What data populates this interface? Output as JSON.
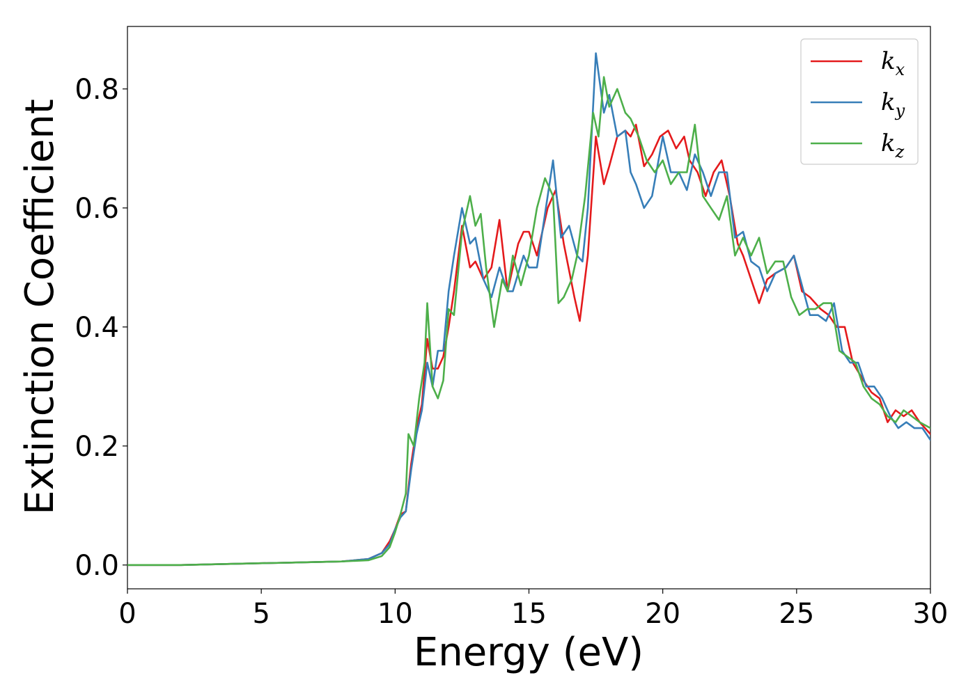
{
  "chart_data": {
    "type": "line",
    "xlabel": "Energy (eV)",
    "ylabel": "Extinction Coefficient",
    "xlim": [
      0,
      30
    ],
    "ylim": [
      -0.04,
      0.905
    ],
    "xticks": [
      0,
      5,
      10,
      15,
      20,
      25,
      30
    ],
    "xtick_labels": [
      "0",
      "5",
      "10",
      "15",
      "20",
      "25",
      "30"
    ],
    "yticks": [
      0.0,
      0.2,
      0.4,
      0.6,
      0.8
    ],
    "ytick_labels": [
      "0.0",
      "0.2",
      "0.4",
      "0.6",
      "0.8"
    ],
    "grid": false,
    "legend": {
      "position": "top-right"
    },
    "series": [
      {
        "name": "kx",
        "legend_base": "k",
        "legend_sub": "x",
        "color": "#e41a1c",
        "x": [
          0,
          2,
          4,
          6,
          8,
          9,
          9.5,
          9.8,
          10,
          10.2,
          10.4,
          10.6,
          10.8,
          11,
          11.2,
          11.4,
          11.6,
          11.8,
          12,
          12.2,
          12.5,
          12.8,
          13,
          13.3,
          13.6,
          13.9,
          14.2,
          14.4,
          14.6,
          14.8,
          15,
          15.3,
          15.7,
          16,
          16.3,
          16.7,
          16.9,
          17.2,
          17.5,
          17.8,
          18,
          18.3,
          18.6,
          18.8,
          19,
          19.3,
          19.6,
          19.9,
          20.2,
          20.5,
          20.8,
          21,
          21.3,
          21.6,
          21.9,
          22.2,
          22.5,
          22.8,
          23,
          23.3,
          23.6,
          23.9,
          24.2,
          24.6,
          24.9,
          25.2,
          25.5,
          25.9,
          26.2,
          26.5,
          26.8,
          27.1,
          27.5,
          27.8,
          28.1,
          28.4,
          28.7,
          29,
          29.3,
          29.6,
          30
        ],
        "y": [
          0.0,
          0.0,
          0.002,
          0.004,
          0.006,
          0.01,
          0.02,
          0.04,
          0.06,
          0.085,
          0.09,
          0.17,
          0.23,
          0.27,
          0.38,
          0.33,
          0.33,
          0.35,
          0.4,
          0.46,
          0.57,
          0.5,
          0.51,
          0.48,
          0.5,
          0.58,
          0.46,
          0.5,
          0.54,
          0.56,
          0.56,
          0.52,
          0.6,
          0.63,
          0.54,
          0.45,
          0.41,
          0.52,
          0.72,
          0.64,
          0.67,
          0.72,
          0.73,
          0.72,
          0.74,
          0.67,
          0.69,
          0.72,
          0.73,
          0.7,
          0.72,
          0.68,
          0.66,
          0.62,
          0.66,
          0.68,
          0.62,
          0.54,
          0.52,
          0.48,
          0.44,
          0.48,
          0.49,
          0.5,
          0.52,
          0.46,
          0.45,
          0.43,
          0.42,
          0.4,
          0.4,
          0.34,
          0.31,
          0.29,
          0.28,
          0.24,
          0.26,
          0.25,
          0.26,
          0.24,
          0.22
        ]
      },
      {
        "name": "ky",
        "legend_base": "k",
        "legend_sub": "y",
        "color": "#377eb8",
        "x": [
          0,
          2,
          4,
          6,
          8,
          9,
          9.5,
          9.8,
          10,
          10.2,
          10.4,
          10.6,
          10.8,
          11,
          11.2,
          11.4,
          11.6,
          11.8,
          12,
          12.2,
          12.5,
          12.8,
          13,
          13.3,
          13.6,
          13.9,
          14.2,
          14.4,
          14.6,
          14.8,
          15,
          15.3,
          15.7,
          15.9,
          16.2,
          16.5,
          16.8,
          17,
          17.2,
          17.5,
          17.8,
          18,
          18.3,
          18.6,
          18.8,
          19,
          19.3,
          19.6,
          20,
          20.3,
          20.6,
          20.9,
          21.2,
          21.5,
          21.8,
          22.1,
          22.4,
          22.7,
          23,
          23.3,
          23.6,
          23.9,
          24.2,
          24.6,
          24.9,
          25.2,
          25.5,
          25.8,
          26.1,
          26.4,
          26.7,
          27,
          27.3,
          27.6,
          27.9,
          28.2,
          28.5,
          28.8,
          29.1,
          29.4,
          29.7,
          30
        ],
        "y": [
          0.0,
          0.0,
          0.002,
          0.004,
          0.006,
          0.01,
          0.02,
          0.035,
          0.06,
          0.08,
          0.09,
          0.16,
          0.22,
          0.26,
          0.34,
          0.3,
          0.36,
          0.36,
          0.46,
          0.52,
          0.6,
          0.54,
          0.55,
          0.48,
          0.45,
          0.5,
          0.46,
          0.46,
          0.49,
          0.52,
          0.5,
          0.5,
          0.62,
          0.68,
          0.55,
          0.57,
          0.52,
          0.51,
          0.6,
          0.86,
          0.76,
          0.79,
          0.72,
          0.73,
          0.66,
          0.64,
          0.6,
          0.62,
          0.72,
          0.66,
          0.66,
          0.63,
          0.69,
          0.66,
          0.62,
          0.66,
          0.66,
          0.55,
          0.56,
          0.51,
          0.5,
          0.46,
          0.49,
          0.5,
          0.52,
          0.47,
          0.42,
          0.42,
          0.41,
          0.44,
          0.36,
          0.34,
          0.34,
          0.3,
          0.3,
          0.28,
          0.25,
          0.23,
          0.24,
          0.23,
          0.23,
          0.21
        ]
      },
      {
        "name": "kz",
        "legend_base": "k",
        "legend_sub": "z",
        "color": "#4daf4a",
        "x": [
          0,
          2,
          4,
          6,
          8,
          9,
          9.5,
          9.8,
          10,
          10.2,
          10.4,
          10.5,
          10.7,
          10.9,
          11.1,
          11.2,
          11.4,
          11.6,
          11.8,
          12,
          12.2,
          12.5,
          12.8,
          13,
          13.2,
          13.4,
          13.7,
          14,
          14.2,
          14.4,
          14.7,
          15,
          15.3,
          15.6,
          15.9,
          16.1,
          16.3,
          16.6,
          16.8,
          17.1,
          17.4,
          17.6,
          17.8,
          18,
          18.3,
          18.6,
          18.8,
          19.1,
          19.4,
          19.7,
          20,
          20.3,
          20.6,
          20.9,
          21.2,
          21.5,
          21.8,
          22.1,
          22.4,
          22.7,
          23,
          23.3,
          23.6,
          23.9,
          24.2,
          24.5,
          24.8,
          25.1,
          25.4,
          25.7,
          26,
          26.3,
          26.6,
          26.9,
          27.2,
          27.5,
          27.8,
          28.1,
          28.4,
          28.7,
          29,
          29.3,
          29.6,
          30
        ],
        "y": [
          0.0,
          0.0,
          0.002,
          0.004,
          0.006,
          0.008,
          0.015,
          0.03,
          0.055,
          0.085,
          0.12,
          0.22,
          0.2,
          0.28,
          0.34,
          0.44,
          0.3,
          0.28,
          0.31,
          0.43,
          0.42,
          0.56,
          0.62,
          0.57,
          0.59,
          0.5,
          0.4,
          0.48,
          0.46,
          0.52,
          0.47,
          0.52,
          0.6,
          0.65,
          0.62,
          0.44,
          0.45,
          0.48,
          0.52,
          0.62,
          0.76,
          0.72,
          0.82,
          0.77,
          0.8,
          0.76,
          0.75,
          0.72,
          0.68,
          0.66,
          0.68,
          0.64,
          0.66,
          0.66,
          0.74,
          0.62,
          0.6,
          0.58,
          0.62,
          0.52,
          0.55,
          0.52,
          0.55,
          0.49,
          0.51,
          0.51,
          0.45,
          0.42,
          0.43,
          0.43,
          0.44,
          0.44,
          0.36,
          0.35,
          0.34,
          0.3,
          0.28,
          0.27,
          0.25,
          0.24,
          0.26,
          0.25,
          0.24,
          0.23
        ]
      }
    ]
  }
}
